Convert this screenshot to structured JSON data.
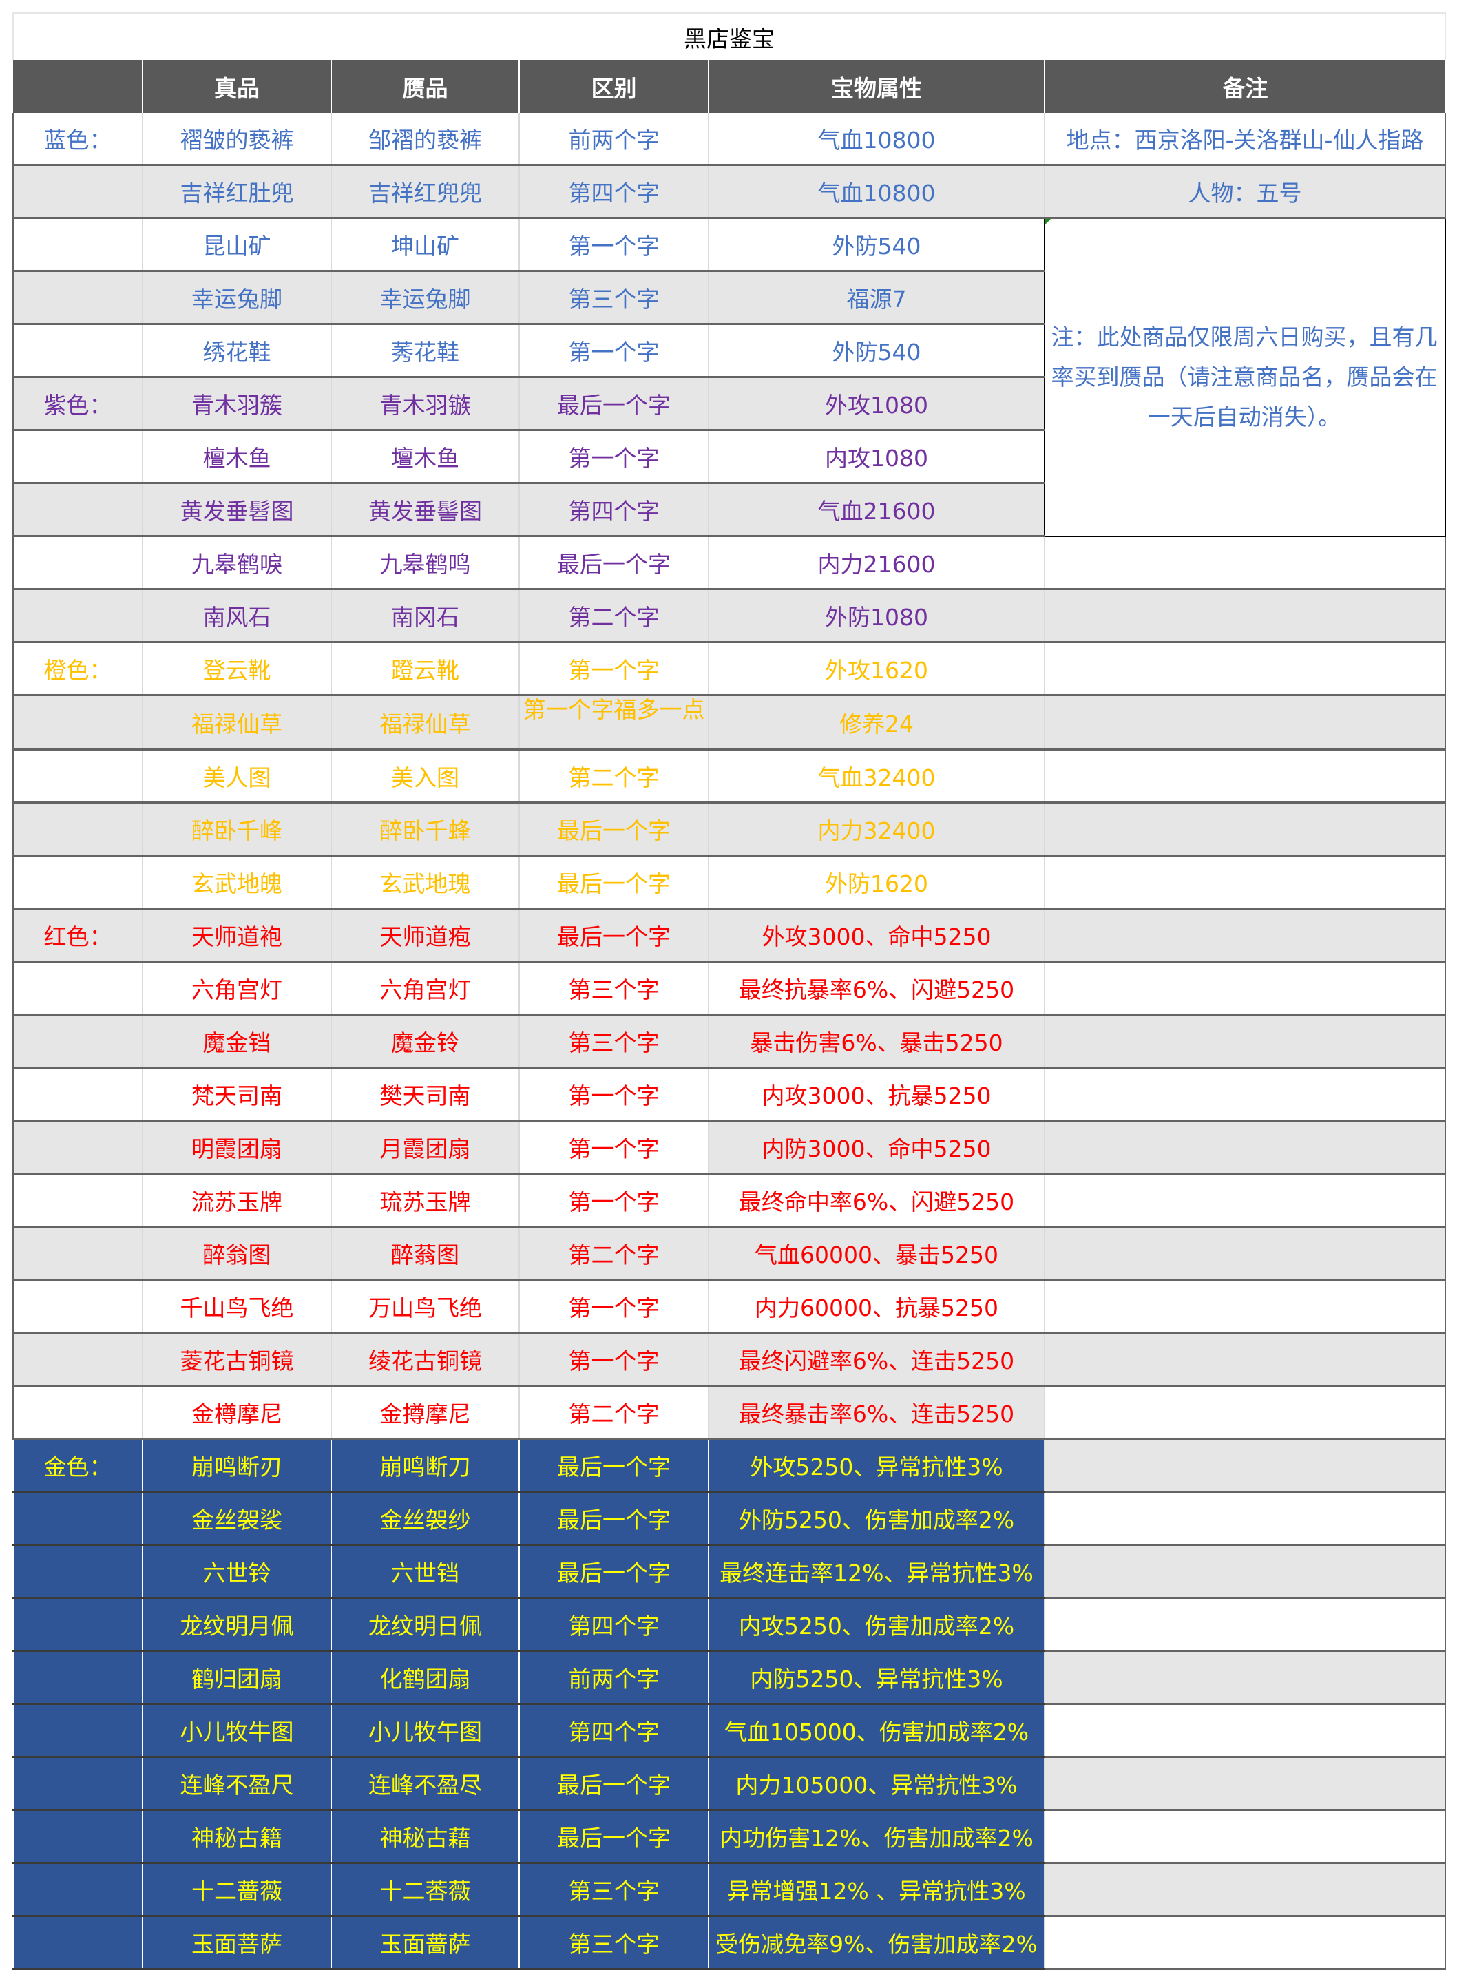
{
  "title": "黑店鉴宝",
  "headers": [
    "",
    "真品",
    "赝品",
    "区别",
    "宝物属性",
    "备注"
  ],
  "colors": {
    "blue": "#4472c4",
    "purple": "#7030a0",
    "orange": "#ffc000",
    "red": "#ff0000",
    "gold_text": "#ffff00",
    "gold_bg": "#2f5597",
    "header_bg": "#595959",
    "shade": "#e6e6e6"
  },
  "notes": {
    "location": "地点：西京洛阳-关洛群山-仙人指路",
    "person": "人物：五号",
    "remark": "注：此处商品仅限周六日购买，且有几率买到赝品（请注意商品名，赝品会在一天后自动消失）。"
  },
  "rows": [
    {
      "tier": "蓝色：",
      "color": "blue",
      "real": "褶皱的亵裤",
      "fake": "邹褶的亵裤",
      "diff": "前两个字",
      "attr": "气血10800",
      "shaded": false
    },
    {
      "tier": "",
      "color": "blue",
      "real": "吉祥红肚兜",
      "fake": "吉祥红兜兜",
      "diff": "第四个字",
      "attr": "气血10800",
      "shaded": true
    },
    {
      "tier": "",
      "color": "blue",
      "real": "昆山矿",
      "fake": "坤山矿",
      "diff": "第一个字",
      "attr": "外防540",
      "shaded": false
    },
    {
      "tier": "",
      "color": "blue",
      "real": "幸运兔脚",
      "fake": "幸运兔脚",
      "diff": "第三个字",
      "attr": "福源7",
      "shaded": true
    },
    {
      "tier": "",
      "color": "blue",
      "real": "绣花鞋",
      "fake": "莠花鞋",
      "diff": "第一个字",
      "attr": "外防540",
      "shaded": false
    },
    {
      "tier": "紫色：",
      "color": "purple",
      "real": "青木羽簇",
      "fake": "青木羽镞",
      "diff": "最后一个字",
      "attr": "外攻1080",
      "shaded": true
    },
    {
      "tier": "",
      "color": "purple",
      "real": "檀木鱼",
      "fake": "壇木鱼",
      "diff": "第一个字",
      "attr": "内攻1080",
      "shaded": false
    },
    {
      "tier": "",
      "color": "purple",
      "real": "黄发垂髫图",
      "fake": "黄发垂髻图",
      "diff": "第四个字",
      "attr": "气血21600",
      "shaded": true
    },
    {
      "tier": "",
      "color": "purple",
      "real": "九皋鹤唳",
      "fake": "九皋鹤鸣",
      "diff": "最后一个字",
      "attr": "内力21600",
      "shaded": false
    },
    {
      "tier": "",
      "color": "purple",
      "real": "南风石",
      "fake": "南冈石",
      "diff": "第二个字",
      "attr": "外防1080",
      "shaded": true
    },
    {
      "tier": "橙色：",
      "color": "orange",
      "real": "登云靴",
      "fake": "蹬云靴",
      "diff": "第一个字",
      "attr": "外攻1620",
      "shaded": false
    },
    {
      "tier": "",
      "color": "orange",
      "real": "福禄仙草",
      "fake": "福禄仙草",
      "diff": "第一个字福多一点",
      "attr": "修养24",
      "shaded": true,
      "wrap": true
    },
    {
      "tier": "",
      "color": "orange",
      "real": "美人图",
      "fake": "美入图",
      "diff": "第二个字",
      "attr": "气血32400",
      "shaded": false
    },
    {
      "tier": "",
      "color": "orange",
      "real": "醉卧千峰",
      "fake": "醉卧千蜂",
      "diff": "最后一个字",
      "attr": "内力32400",
      "shaded": true
    },
    {
      "tier": "",
      "color": "orange",
      "real": "玄武地魄",
      "fake": "玄武地瑰",
      "diff": "最后一个字",
      "attr": "外防1620",
      "shaded": false
    },
    {
      "tier": "红色：",
      "color": "red",
      "real": "天师道袍",
      "fake": "天师道疱",
      "diff": "最后一个字",
      "attr": "外攻3000、命中5250",
      "shaded": true
    },
    {
      "tier": "",
      "color": "red",
      "real": "六角宫灯",
      "fake": "六角宫灯",
      "diff": "第三个字",
      "attr": "最终抗暴率6%、闪避5250",
      "shaded": false
    },
    {
      "tier": "",
      "color": "red",
      "real": "魔金铛",
      "fake": "魔金铃",
      "diff": "第三个字",
      "attr": "暴击伤害6%、暴击5250",
      "shaded": true
    },
    {
      "tier": "",
      "color": "red",
      "real": "梵天司南",
      "fake": "樊天司南",
      "diff": "第一个字",
      "attr": "内攻3000、抗暴5250",
      "shaded": false
    },
    {
      "tier": "",
      "color": "red",
      "real": "明霞团扇",
      "fake": "月霞团扇",
      "diff": "第一个字",
      "attr": "内防3000、命中5250",
      "shaded": true,
      "diff_white": true
    },
    {
      "tier": "",
      "color": "red",
      "real": "流苏玉牌",
      "fake": "琉苏玉牌",
      "diff": "第一个字",
      "attr": "最终命中率6%、闪避5250",
      "shaded": false
    },
    {
      "tier": "",
      "color": "red",
      "real": "醉翁图",
      "fake": "醉蓊图",
      "diff": "第二个字",
      "attr": "气血60000、暴击5250",
      "shaded": true
    },
    {
      "tier": "",
      "color": "red",
      "real": "千山鸟飞绝",
      "fake": "万山鸟飞绝",
      "diff": "第一个字",
      "attr": "内力60000、抗暴5250",
      "shaded": false
    },
    {
      "tier": "",
      "color": "red",
      "real": "菱花古铜镜",
      "fake": "绫花古铜镜",
      "diff": "第一个字",
      "attr": "最终闪避率6%、连击5250",
      "shaded": true
    },
    {
      "tier": "",
      "color": "red",
      "real": "金樽摩尼",
      "fake": "金撙摩尼",
      "diff": "第二个字",
      "attr": "最终暴击率6%、连击5250",
      "shaded": false,
      "attr_grey": true
    },
    {
      "tier": "金色：",
      "color": "gold",
      "real": "崩鸣断刃",
      "fake": "崩鸣断刀",
      "diff": "最后一个字",
      "attr": "外攻5250、异常抗性3%",
      "shaded": true
    },
    {
      "tier": "",
      "color": "gold",
      "real": "金丝袈裟",
      "fake": "金丝袈纱",
      "diff": "最后一个字",
      "attr": "外防5250、伤害加成率2%",
      "shaded": false
    },
    {
      "tier": "",
      "color": "gold",
      "real": "六世铃",
      "fake": "六世铛",
      "diff": "最后一个字",
      "attr": "最终连击率12%、异常抗性3%",
      "shaded": true
    },
    {
      "tier": "",
      "color": "gold",
      "real": "龙纹明月佩",
      "fake": "龙纹明日佩",
      "diff": "第四个字",
      "attr": "内攻5250、伤害加成率2%",
      "shaded": false
    },
    {
      "tier": "",
      "color": "gold",
      "real": "鹤归团扇",
      "fake": "化鹤团扇",
      "diff": "前两个字",
      "attr": "内防5250、异常抗性3%",
      "shaded": true
    },
    {
      "tier": "",
      "color": "gold",
      "real": "小儿牧牛图",
      "fake": "小儿牧午图",
      "diff": "第四个字",
      "attr": "气血105000、伤害加成率2%",
      "shaded": false
    },
    {
      "tier": "",
      "color": "gold",
      "real": "连峰不盈尺",
      "fake": "连峰不盈尽",
      "diff": "最后一个字",
      "attr": "内力105000、异常抗性3%",
      "shaded": true
    },
    {
      "tier": "",
      "color": "gold",
      "real": "神秘古籍",
      "fake": "神秘古藉",
      "diff": "最后一个字",
      "attr": "内功伤害12%、伤害加成率2%",
      "shaded": false
    },
    {
      "tier": "",
      "color": "gold",
      "real": "十二蔷薇",
      "fake": "十二莕薇",
      "diff": "第三个字",
      "attr": "异常增强12% 、异常抗性3%",
      "shaded": true
    },
    {
      "tier": "",
      "color": "gold",
      "real": "玉面菩萨",
      "fake": "玉面蔷萨",
      "diff": "第三个字",
      "attr": "受伤减免率9%、伤害加成率2%",
      "shaded": false
    }
  ]
}
